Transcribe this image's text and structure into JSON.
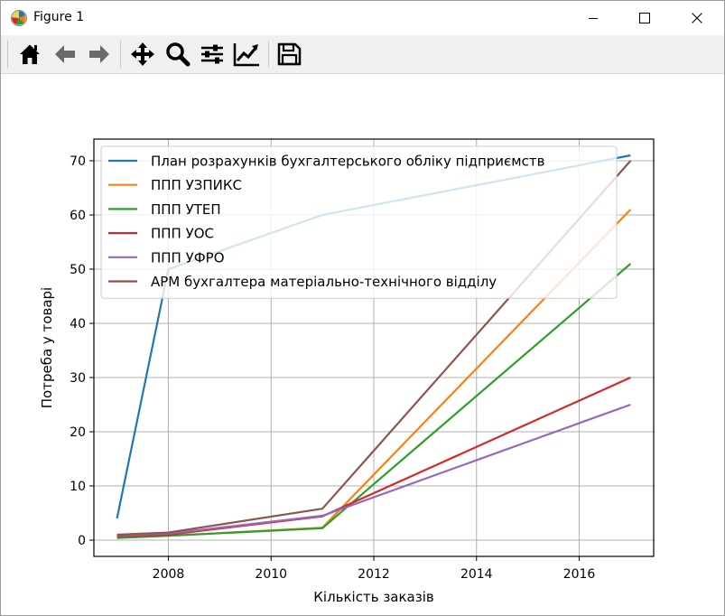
{
  "window": {
    "title": "Figure 1"
  },
  "toolbar": {
    "items": [
      {
        "name": "home-icon"
      },
      {
        "name": "back-arrow-icon"
      },
      {
        "name": "forward-arrow-icon"
      },
      {
        "name": "pan-icon"
      },
      {
        "name": "zoom-icon"
      },
      {
        "name": "configure-subplots-icon"
      },
      {
        "name": "edit-axis-icon"
      },
      {
        "name": "save-icon"
      }
    ]
  },
  "colors": {
    "series": [
      "#1f77b4",
      "#ff7f0e",
      "#2ca02c",
      "#d62728",
      "#9467bd",
      "#8c564b"
    ],
    "grid": "#b0b0b0",
    "axes": "#000000"
  },
  "chart_data": {
    "type": "line",
    "title": "",
    "xlabel": "Кількість заказів",
    "ylabel": "Потреба у товарі",
    "xlim": [
      2006.55,
      2017.45
    ],
    "ylim": [
      -3.0,
      74.0
    ],
    "xticks": [
      2008,
      2010,
      2012,
      2014,
      2016
    ],
    "yticks": [
      0,
      10,
      20,
      30,
      40,
      50,
      60,
      70
    ],
    "grid": true,
    "legend": "upper-left",
    "x": [
      2007,
      2008,
      2011,
      2017
    ],
    "series": [
      {
        "name": "План розрахунків бухгалтерського обліку підприємств",
        "values": [
          4,
          50,
          60,
          71
        ]
      },
      {
        "name": "ППП УЗПИКС",
        "values": [
          0.5,
          0.8,
          2.3,
          61
        ]
      },
      {
        "name": "ППП УТЕП",
        "values": [
          0.4,
          0.8,
          2.2,
          51
        ]
      },
      {
        "name": "ППП УОС",
        "values": [
          0.7,
          1.0,
          4.4,
          30
        ]
      },
      {
        "name": "ППП УФРО",
        "values": [
          0.9,
          1.2,
          4.5,
          25
        ]
      },
      {
        "name": "АРМ бухгалтера матеріально-технічного відділу",
        "values": [
          1.0,
          1.4,
          5.8,
          70
        ]
      }
    ]
  }
}
